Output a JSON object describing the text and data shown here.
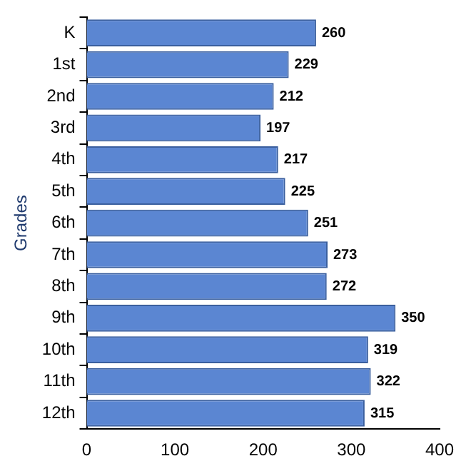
{
  "chart_data": {
    "type": "bar",
    "orientation": "horizontal",
    "ylabel": "Grades",
    "categories": [
      "K",
      "1st",
      "2nd",
      "3rd",
      "4th",
      "5th",
      "6th",
      "7th",
      "8th",
      "9th",
      "10th",
      "11th",
      "12th"
    ],
    "values": [
      260,
      229,
      212,
      197,
      217,
      225,
      251,
      273,
      272,
      350,
      319,
      322,
      315
    ],
    "color": "#5b86d2",
    "xlim": [
      0,
      400
    ],
    "xticks": [
      0,
      100,
      200,
      300,
      400
    ],
    "grid": false,
    "legend": false,
    "data_labels": true
  }
}
